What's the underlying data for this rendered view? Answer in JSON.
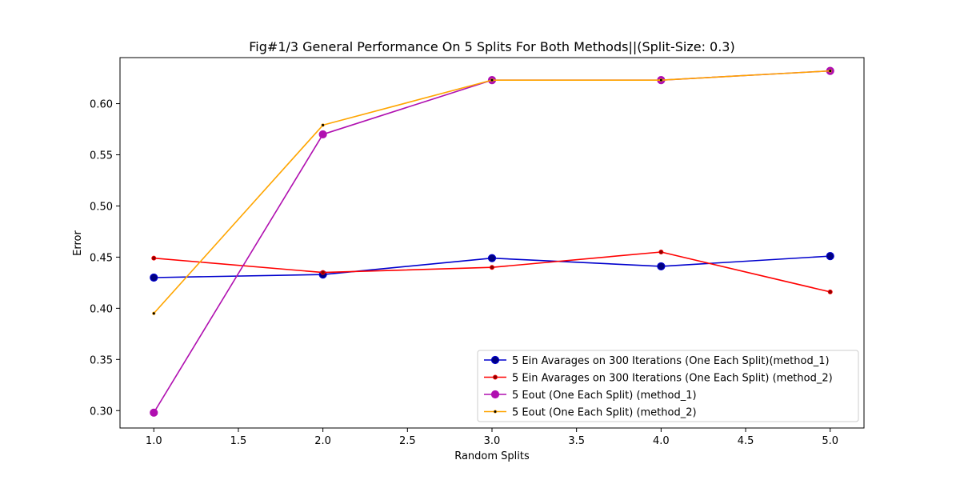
{
  "chart_data": {
    "type": "line",
    "title": "Fig#1/3 General Performance On 5 Splits For Both Methods||(Split-Size: 0.3)",
    "xlabel": "Random Splits",
    "ylabel": "Error",
    "xlim": [
      0.8,
      5.2
    ],
    "ylim": [
      0.283,
      0.645
    ],
    "x_ticks": [
      "1.0",
      "1.5",
      "2.0",
      "2.5",
      "3.0",
      "3.5",
      "4.0",
      "4.5",
      "5.0"
    ],
    "y_ticks": [
      "0.30",
      "0.35",
      "0.40",
      "0.45",
      "0.50",
      "0.55",
      "0.60"
    ],
    "x": [
      1,
      2,
      3,
      4,
      5
    ],
    "grid": false,
    "legend_position": "lower-right",
    "series": [
      {
        "name": "5 Ein Avarages on 300 Iterations (One Each Split)(method_1)",
        "values": [
          0.43,
          0.433,
          0.449,
          0.441,
          0.451
        ],
        "color": "#0000cd",
        "marker_fill": "#000080",
        "marker": "large-dot"
      },
      {
        "name": "5 Ein Avarages on 300 Iterations (One Each Split) (method_2)",
        "values": [
          0.449,
          0.435,
          0.44,
          0.455,
          0.416
        ],
        "color": "#ff0000",
        "marker_fill": "#8b0000",
        "marker": "small-dot"
      },
      {
        "name": "5 Eout (One Each Split) (method_1)",
        "values": [
          0.298,
          0.57,
          0.623,
          0.623,
          0.632
        ],
        "color": "#b010b0",
        "marker_fill": "#b010b0",
        "marker": "large-dot"
      },
      {
        "name": "5 Eout (One Each Split) (method_2)",
        "values": [
          0.395,
          0.579,
          0.623,
          0.623,
          0.632
        ],
        "color": "#ffa500",
        "marker_fill": "#000000",
        "marker": "tiny-dot"
      }
    ]
  }
}
